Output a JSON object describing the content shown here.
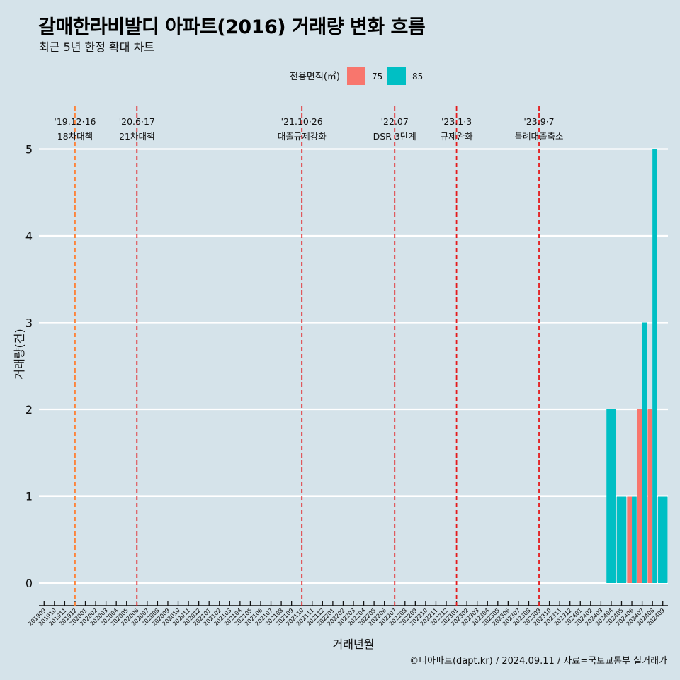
{
  "title": "갈매한라비발디 아파트(2016) 거래량 변화 흐름",
  "subtitle": "최근 5년 한정 확대 차트",
  "caption": "©디아파트(dapt.kr) / 2024.09.11 / 자료=국토교통부 실거래가",
  "colors": {
    "background": "#d5e3ea",
    "series_75": "#f8766d",
    "series_85": "#00bfc4",
    "event_line": "#e41a1c",
    "first_event_line": "#ff7f32"
  },
  "chart_data": {
    "type": "bar",
    "xlabel": "거래년월",
    "ylabel": "거래량(건)",
    "ylim": [
      0,
      5
    ],
    "yticks": [
      0,
      1,
      2,
      3,
      4,
      5
    ],
    "grid": true,
    "legend": {
      "title": "전용면적(㎡)",
      "placement": "top"
    },
    "categories": [
      "201909",
      "201910",
      "201911",
      "201912",
      "202001",
      "202002",
      "202003",
      "202004",
      "202005",
      "202006",
      "202007",
      "202008",
      "202009",
      "202010",
      "202011",
      "202012",
      "202101",
      "202102",
      "202103",
      "202104",
      "202105",
      "202106",
      "202107",
      "202108",
      "202109",
      "202110",
      "202111",
      "202112",
      "202201",
      "202202",
      "202203",
      "202204",
      "202205",
      "202206",
      "202207",
      "202208",
      "202209",
      "202210",
      "202211",
      "202212",
      "202301",
      "202302",
      "202303",
      "202304",
      "202305",
      "202306",
      "202307",
      "202308",
      "202309",
      "202310",
      "202311",
      "202312",
      "202401",
      "202402",
      "202403",
      "202404",
      "202405",
      "202406",
      "202407",
      "202408",
      "202409"
    ],
    "series": [
      {
        "name": "75",
        "color": "#f8766d",
        "values": {
          "202406": 1,
          "202407": 2,
          "202408": 2
        }
      },
      {
        "name": "85",
        "color": "#00bfc4",
        "values": {
          "202404": 2,
          "202405": 1,
          "202406": 1,
          "202407": 3,
          "202408": 5,
          "202409": 1
        }
      }
    ],
    "events": [
      {
        "month": "201912",
        "date": "'19.12·16",
        "label": "18차대책"
      },
      {
        "month": "202006",
        "date": "'20.6·17",
        "label": "21차대책"
      },
      {
        "month": "202110",
        "date": "'21.10·26",
        "label": "대출규제강화"
      },
      {
        "month": "202207",
        "date": "'22.07",
        "label": "DSR 3단계"
      },
      {
        "month": "202301",
        "date": "'23.1·3",
        "label": "규제완화"
      },
      {
        "month": "202309",
        "date": "'23.9·7",
        "label": "특례대출축소"
      }
    ]
  }
}
